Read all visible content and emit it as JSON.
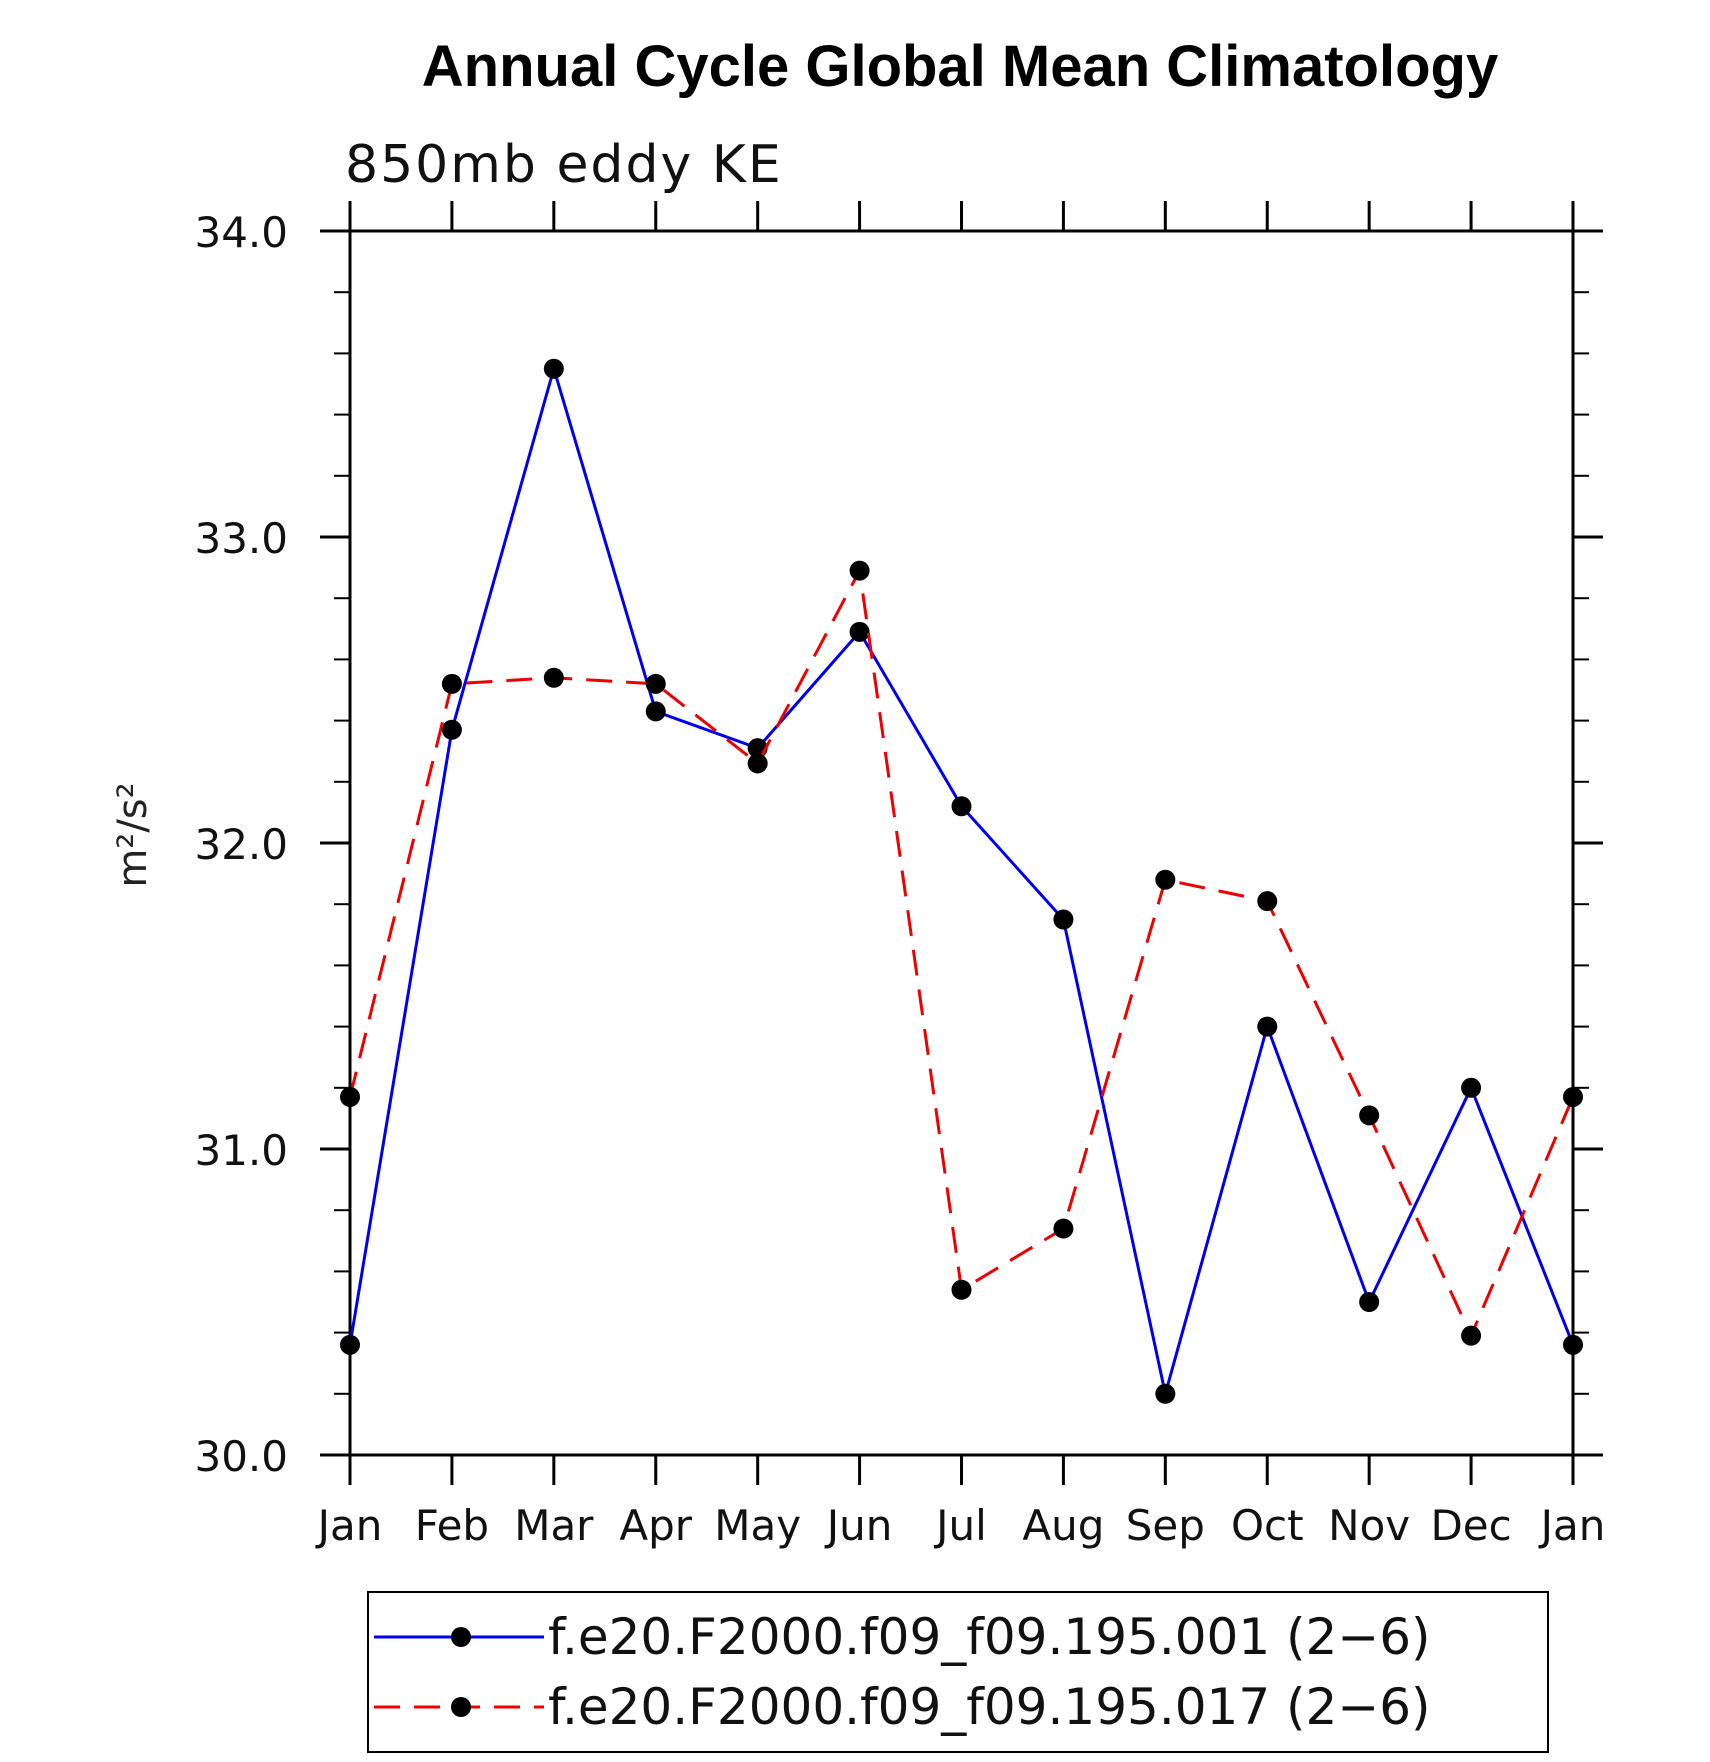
{
  "chart_data": {
    "type": "line",
    "title": "Annual Cycle Global Mean Climatology",
    "subtitle": "850mb eddy KE",
    "ylabel": "m²/s²",
    "xlabel": "",
    "categories": [
      "Jan",
      "Feb",
      "Mar",
      "Apr",
      "May",
      "Jun",
      "Jul",
      "Aug",
      "Sep",
      "Oct",
      "Nov",
      "Dec",
      "Jan"
    ],
    "ylim": [
      30.0,
      34.0
    ],
    "y_ticks": [
      "30.0",
      "31.0",
      "32.0",
      "33.0",
      "34.0"
    ],
    "y_minor_step": 0.2,
    "grid": false,
    "legend_position": "bottom",
    "series": [
      {
        "name": "f.e20.F2000.f09_f09.195.001 (2−6)",
        "color": "#0000ee",
        "dash": "solid",
        "marker": "filled-circle",
        "values": [
          30.36,
          32.37,
          33.55,
          32.43,
          32.31,
          32.69,
          32.12,
          31.75,
          30.2,
          31.4,
          30.5,
          31.2,
          30.36
        ]
      },
      {
        "name": "f.e20.F2000.f09_f09.195.017 (2−6)",
        "color": "#ee0000",
        "dash": "dashed",
        "marker": "filled-circle",
        "values": [
          31.17,
          32.52,
          32.54,
          32.52,
          32.26,
          32.89,
          30.54,
          30.74,
          31.88,
          31.81,
          31.11,
          30.39,
          31.17
        ]
      }
    ]
  }
}
